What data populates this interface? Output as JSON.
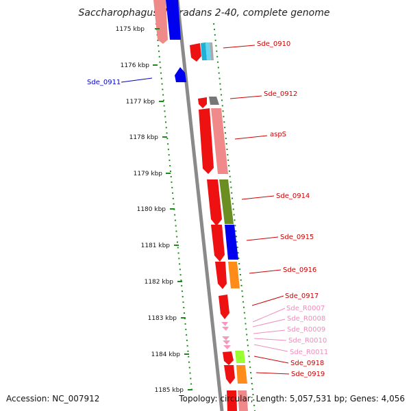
{
  "title": "Saccharophagus degradans 2-40, complete genome",
  "footer": {
    "accession": "Accession: NC_007912",
    "topology": "Topology: circular; Length: 5,057,531 bp; Genes: 4,056"
  },
  "colors": {
    "backbone": "#8a8a8a",
    "tick": "#1a8a1a",
    "label_red": "#cc0000",
    "label_pink": "#f08cbc",
    "label_blue": "#0000cc"
  },
  "ticks": [
    "1175 kbp",
    "1176 kbp",
    "1177 kbp",
    "1178 kbp",
    "1179 kbp",
    "1180 kbp",
    "1181 kbp",
    "1182 kbp",
    "1183 kbp",
    "1184 kbp",
    "1185 kbp"
  ],
  "gene_labels": [
    {
      "text": "Sde_0910",
      "color": "label_red"
    },
    {
      "text": "Sde_0911",
      "color": "label_blue"
    },
    {
      "text": "Sde_0912",
      "color": "label_red"
    },
    {
      "text": "aspS",
      "color": "label_red"
    },
    {
      "text": "Sde_0914",
      "color": "label_red"
    },
    {
      "text": "Sde_0915",
      "color": "label_red"
    },
    {
      "text": "Sde_0916",
      "color": "label_red"
    },
    {
      "text": "Sde_0917",
      "color": "label_red"
    },
    {
      "text": "Sde_R0007",
      "color": "label_pink"
    },
    {
      "text": "Sde_R0008",
      "color": "label_pink"
    },
    {
      "text": "Sde_R0009",
      "color": "label_pink"
    },
    {
      "text": "Sde_R0010",
      "color": "label_pink"
    },
    {
      "text": "Sde_R0011",
      "color": "label_pink"
    },
    {
      "text": "Sde_0918",
      "color": "label_red"
    },
    {
      "text": "Sde_0919",
      "color": "label_red"
    }
  ]
}
